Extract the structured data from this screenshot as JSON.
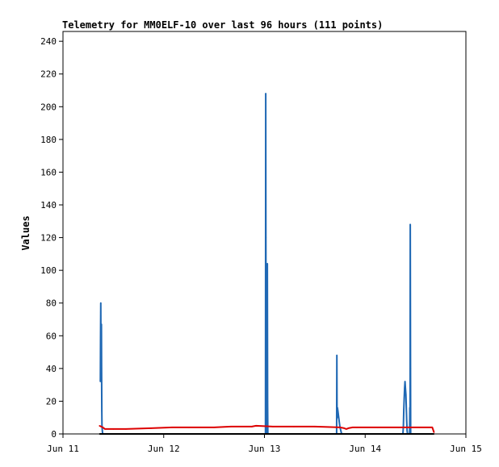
{
  "chart_data": {
    "type": "line",
    "title": "Telemetry for MM0ELF-10 over last 96 hours (111 points)",
    "xlabel": "",
    "ylabel": "Values",
    "x_ticks": [
      "Jun 11",
      "Jun 12",
      "Jun 13",
      "Jun 14",
      "Jun 15"
    ],
    "xlim": [
      0,
      96
    ],
    "ylim": [
      0,
      246
    ],
    "y_ticks": [
      0,
      20,
      40,
      60,
      80,
      100,
      120,
      140,
      160,
      180,
      200,
      220,
      240
    ],
    "grid": false,
    "legend": "none",
    "series": [
      {
        "name": "",
        "color": "#1f68b4",
        "x": [
          8.9,
          8.95,
          9.0,
          9.05,
          9.1,
          9.15,
          9.2,
          9.25,
          9.3,
          9.35,
          9.4,
          9.5,
          9.6,
          9.7,
          9.8,
          9.9,
          48.25,
          48.3,
          48.35,
          48.4,
          48.5,
          48.6,
          48.7,
          48.75,
          48.8,
          48.85,
          48.9,
          49.0,
          49.1,
          65.2,
          65.25,
          65.3,
          65.35,
          65.4,
          65.5,
          65.6,
          65.7,
          65.8,
          65.9,
          66.0,
          66.1,
          66.2,
          66.3,
          66.4,
          66.5,
          66.7,
          67.0,
          67.2,
          81.0,
          81.1,
          81.2,
          81.3,
          81.4,
          81.5,
          81.6,
          81.7,
          81.8,
          81.9,
          82.0,
          82.1,
          82.2,
          82.6,
          82.65,
          82.7,
          82.75,
          82.8,
          82.85,
          82.9,
          82.95,
          83.0
        ],
        "y": [
          32,
          56,
          80,
          55,
          40,
          67,
          40,
          14,
          5,
          3,
          1,
          0,
          0,
          0,
          0,
          0,
          0,
          208,
          120,
          30,
          8,
          0,
          104,
          20,
          0,
          0,
          0,
          0,
          0,
          0,
          48,
          16,
          10,
          16,
          14,
          12,
          10,
          8,
          6,
          4,
          3,
          2,
          1,
          0,
          0,
          0,
          0,
          0,
          0,
          5,
          15,
          22,
          28,
          32,
          28,
          24,
          16,
          8,
          2,
          0,
          0,
          0,
          16,
          0,
          128,
          40,
          0,
          0,
          0,
          0
        ]
      },
      {
        "name": "",
        "color": "#dd0000",
        "x": [
          8.7,
          9.5,
          10.0,
          12.0,
          15.0,
          21.0,
          26.0,
          30.0,
          36.0,
          40.0,
          45.0,
          46.0,
          50.0,
          55.0,
          60.0,
          66.0,
          67.0,
          67.5,
          68.0,
          69.0,
          70.0,
          75.0,
          80.0,
          85.0,
          88.0,
          88.4
        ],
        "y": [
          5,
          4,
          3,
          3,
          3,
          3.5,
          4,
          4,
          4,
          4.5,
          4.5,
          5,
          4.5,
          4.5,
          4.5,
          4,
          3.5,
          3,
          3.5,
          4,
          4,
          4,
          4,
          4,
          4,
          1
        ]
      },
      {
        "name": "",
        "color": "#000000",
        "x": [
          8.7,
          88.4
        ],
        "y": [
          0,
          0
        ]
      }
    ]
  }
}
